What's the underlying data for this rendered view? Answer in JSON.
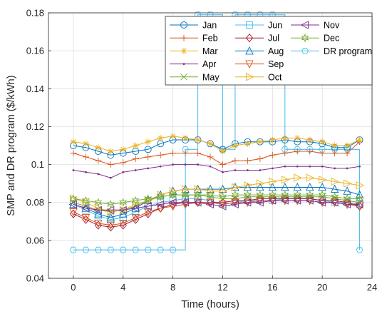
{
  "chart_data": {
    "type": "line",
    "xlabel": "Time (hours)",
    "ylabel": "SMP and DR program ($/kWh)",
    "xlim": [
      -2,
      24
    ],
    "ylim": [
      0.04,
      0.18
    ],
    "xticks": [
      "0",
      "4",
      "8",
      "12",
      "16",
      "20",
      "24"
    ],
    "yticks": [
      "0.04",
      "0.06",
      "0.08",
      "0.1",
      "0.12",
      "0.14",
      "0.16",
      "0.18"
    ],
    "grid": true,
    "legend_position": "top-right",
    "x": [
      0,
      1,
      2,
      3,
      4,
      5,
      6,
      7,
      8,
      9,
      10,
      11,
      12,
      13,
      14,
      15,
      16,
      17,
      18,
      19,
      20,
      21,
      22,
      23
    ],
    "series": [
      {
        "name": "Jan",
        "color": "#0072BD",
        "marker": "circle",
        "values": [
          0.11,
          0.109,
          0.107,
          0.105,
          0.106,
          0.107,
          0.108,
          0.111,
          0.113,
          0.113,
          0.113,
          0.111,
          0.108,
          0.111,
          0.112,
          0.112,
          0.112,
          0.113,
          0.112,
          0.112,
          0.111,
          0.109,
          0.109,
          0.113
        ]
      },
      {
        "name": "Feb",
        "color": "#D95319",
        "marker": "plus",
        "values": [
          0.106,
          0.104,
          0.102,
          0.1,
          0.101,
          0.103,
          0.104,
          0.105,
          0.106,
          0.106,
          0.106,
          0.104,
          0.1,
          0.102,
          0.102,
          0.103,
          0.105,
          0.106,
          0.107,
          0.107,
          0.106,
          0.106,
          0.106,
          0.112
        ]
      },
      {
        "name": "Mar",
        "color": "#EDB120",
        "marker": "asterisk",
        "values": [
          0.112,
          0.111,
          0.109,
          0.107,
          0.108,
          0.11,
          0.112,
          0.114,
          0.115,
          0.114,
          0.113,
          0.111,
          0.107,
          0.11,
          0.111,
          0.112,
          0.113,
          0.114,
          0.114,
          0.113,
          0.112,
          0.11,
          0.11,
          0.113
        ]
      },
      {
        "name": "Apr",
        "color": "#7E2F8E",
        "marker": "dot",
        "values": [
          0.097,
          0.096,
          0.095,
          0.093,
          0.096,
          0.097,
          0.098,
          0.099,
          0.1,
          0.1,
          0.1,
          0.099,
          0.096,
          0.097,
          0.097,
          0.097,
          0.098,
          0.099,
          0.099,
          0.099,
          0.099,
          0.098,
          0.098,
          0.099
        ]
      },
      {
        "name": "May",
        "color": "#77AC30",
        "marker": "x",
        "values": [
          0.08,
          0.078,
          0.076,
          0.075,
          0.076,
          0.078,
          0.081,
          0.083,
          0.084,
          0.084,
          0.084,
          0.083,
          0.082,
          0.082,
          0.083,
          0.083,
          0.083,
          0.083,
          0.083,
          0.083,
          0.083,
          0.082,
          0.081,
          0.08
        ]
      },
      {
        "name": "Jun",
        "color": "#4DBEEE",
        "marker": "square",
        "values": [
          0.079,
          0.076,
          0.073,
          0.071,
          0.072,
          0.075,
          0.078,
          0.08,
          0.081,
          0.082,
          0.082,
          0.081,
          0.079,
          0.08,
          0.081,
          0.081,
          0.081,
          0.082,
          0.082,
          0.082,
          0.081,
          0.08,
          0.08,
          0.079
        ]
      },
      {
        "name": "Jul",
        "color": "#A2142F",
        "marker": "diamond",
        "values": [
          0.074,
          0.071,
          0.068,
          0.067,
          0.068,
          0.071,
          0.074,
          0.077,
          0.079,
          0.08,
          0.08,
          0.08,
          0.08,
          0.081,
          0.081,
          0.082,
          0.082,
          0.082,
          0.082,
          0.082,
          0.081,
          0.081,
          0.08,
          0.078
        ]
      },
      {
        "name": "Aug",
        "color": "#0072BD",
        "marker": "triangle-up",
        "values": [
          0.079,
          0.077,
          0.074,
          0.072,
          0.074,
          0.077,
          0.081,
          0.084,
          0.086,
          0.087,
          0.087,
          0.087,
          0.087,
          0.088,
          0.088,
          0.088,
          0.088,
          0.088,
          0.088,
          0.088,
          0.088,
          0.087,
          0.086,
          0.084
        ]
      },
      {
        "name": "Sep",
        "color": "#D95319",
        "marker": "triangle-down",
        "values": [
          0.075,
          0.072,
          0.069,
          0.068,
          0.069,
          0.072,
          0.075,
          0.077,
          0.078,
          0.079,
          0.08,
          0.08,
          0.079,
          0.08,
          0.08,
          0.081,
          0.081,
          0.081,
          0.081,
          0.081,
          0.08,
          0.08,
          0.079,
          0.078
        ]
      },
      {
        "name": "Oct",
        "color": "#EDB120",
        "marker": "triangle-right",
        "values": [
          0.082,
          0.08,
          0.077,
          0.075,
          0.076,
          0.079,
          0.081,
          0.084,
          0.086,
          0.087,
          0.087,
          0.086,
          0.086,
          0.088,
          0.089,
          0.09,
          0.091,
          0.092,
          0.093,
          0.093,
          0.092,
          0.091,
          0.09,
          0.089
        ]
      },
      {
        "name": "Nov",
        "color": "#7E2F8E",
        "marker": "triangle-left",
        "values": [
          0.079,
          0.077,
          0.076,
          0.076,
          0.076,
          0.077,
          0.078,
          0.079,
          0.08,
          0.08,
          0.08,
          0.079,
          0.078,
          0.079,
          0.08,
          0.08,
          0.081,
          0.081,
          0.081,
          0.081,
          0.08,
          0.08,
          0.079,
          0.079
        ]
      },
      {
        "name": "Dec",
        "color": "#77AC30",
        "marker": "hexagram",
        "values": [
          0.082,
          0.081,
          0.08,
          0.079,
          0.08,
          0.081,
          0.082,
          0.083,
          0.084,
          0.084,
          0.084,
          0.084,
          0.083,
          0.084,
          0.084,
          0.084,
          0.084,
          0.084,
          0.084,
          0.084,
          0.084,
          0.083,
          0.082,
          0.082
        ]
      },
      {
        "name": "DR program",
        "color": "#4DBEEE",
        "marker": "hexagon",
        "step": true,
        "points": [
          [
            0,
            0.055
          ],
          [
            1,
            0.055
          ],
          [
            2,
            0.055
          ],
          [
            3,
            0.055
          ],
          [
            4,
            0.055
          ],
          [
            5,
            0.055
          ],
          [
            6,
            0.055
          ],
          [
            7,
            0.055
          ],
          [
            8,
            0.055
          ],
          [
            9,
            0.108
          ],
          [
            10,
            0.179
          ],
          [
            11,
            0.179
          ],
          [
            12,
            0.108
          ],
          [
            13,
            0.179
          ],
          [
            14,
            0.179
          ],
          [
            15,
            0.179
          ],
          [
            16,
            0.179
          ],
          [
            17,
            0.108
          ],
          [
            18,
            0.108
          ],
          [
            19,
            0.108
          ],
          [
            20,
            0.108
          ],
          [
            21,
            0.108
          ],
          [
            22,
            0.108
          ],
          [
            23,
            0.055
          ]
        ]
      }
    ]
  }
}
